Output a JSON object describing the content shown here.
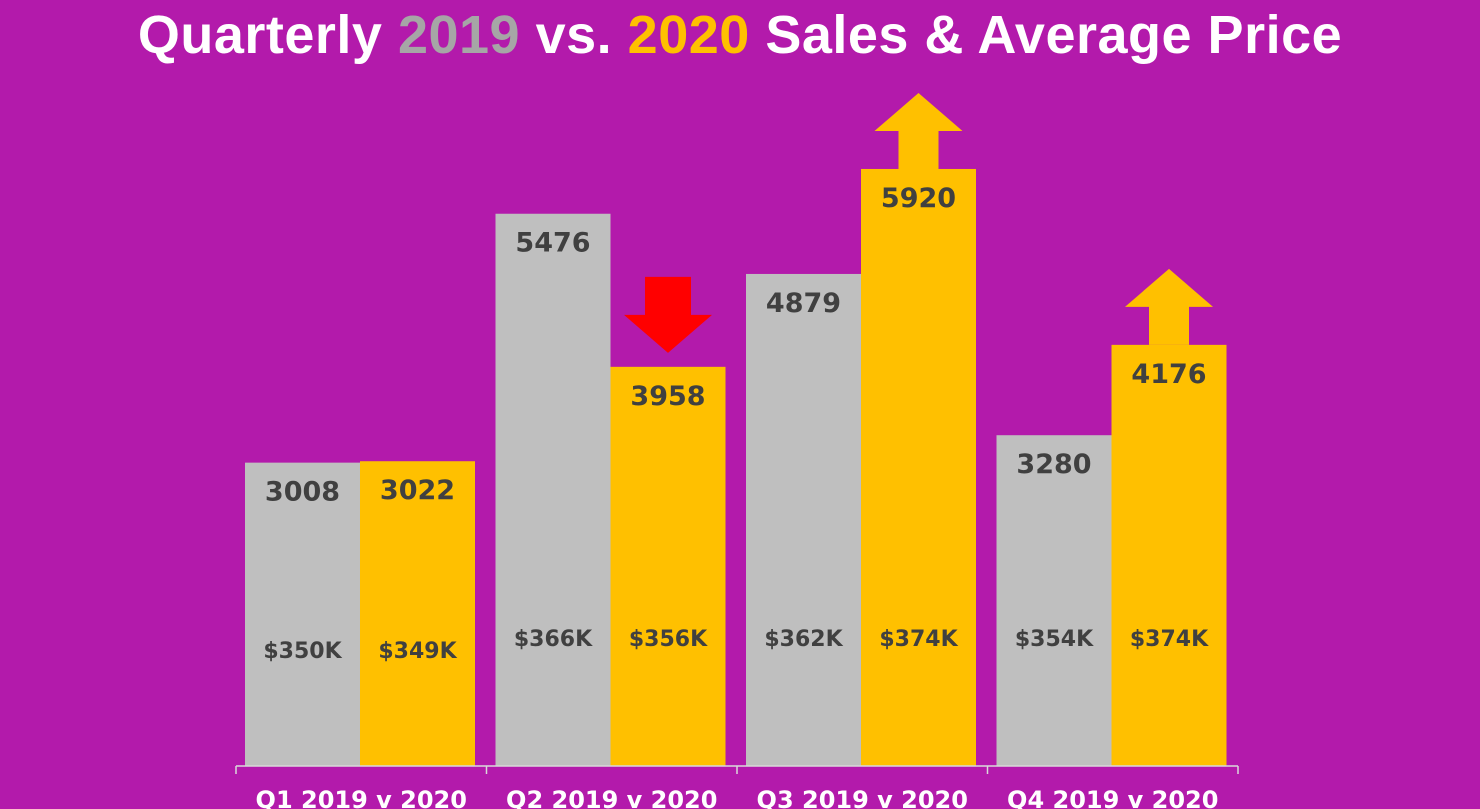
{
  "title": {
    "part1": "Quarterly ",
    "year1": "2019",
    "part2": " vs. ",
    "year2": "2020",
    "part3": " Sales & Average Price"
  },
  "colors": {
    "background": "#b31aab",
    "series_2019": "#bfbfbf",
    "series_2020": "#ffc000",
    "up_arrow": "#ffc000",
    "down_arrow": "#ff0000",
    "value_text": "#404040"
  },
  "chart_data": {
    "type": "bar",
    "title": "Quarterly 2019 vs. 2020 Sales & Average Price",
    "categories": [
      "Q1 2019 v 2020",
      "Q2 2019 v 2020",
      "Q3 2019 v 2020",
      "Q4 2019 v 2020"
    ],
    "series": [
      {
        "name": "2019",
        "values": [
          3008,
          5476,
          4879,
          3280
        ],
        "labels": [
          "3008",
          "5476",
          "4879",
          "3280"
        ],
        "avg_price": [
          "$350K",
          "$366K",
          "$362K",
          "$354K"
        ]
      },
      {
        "name": "2020",
        "values": [
          3022,
          3958,
          5920,
          4176
        ],
        "labels": [
          "3022",
          "3958",
          "5920",
          "4176"
        ],
        "avg_price": [
          "$349K",
          "$356K",
          "$374K",
          "$374K"
        ]
      }
    ],
    "trend_arrows": [
      "none",
      "down",
      "up",
      "up"
    ],
    "ylim": [
      0,
      6000
    ],
    "grid": false,
    "legend": "none"
  }
}
